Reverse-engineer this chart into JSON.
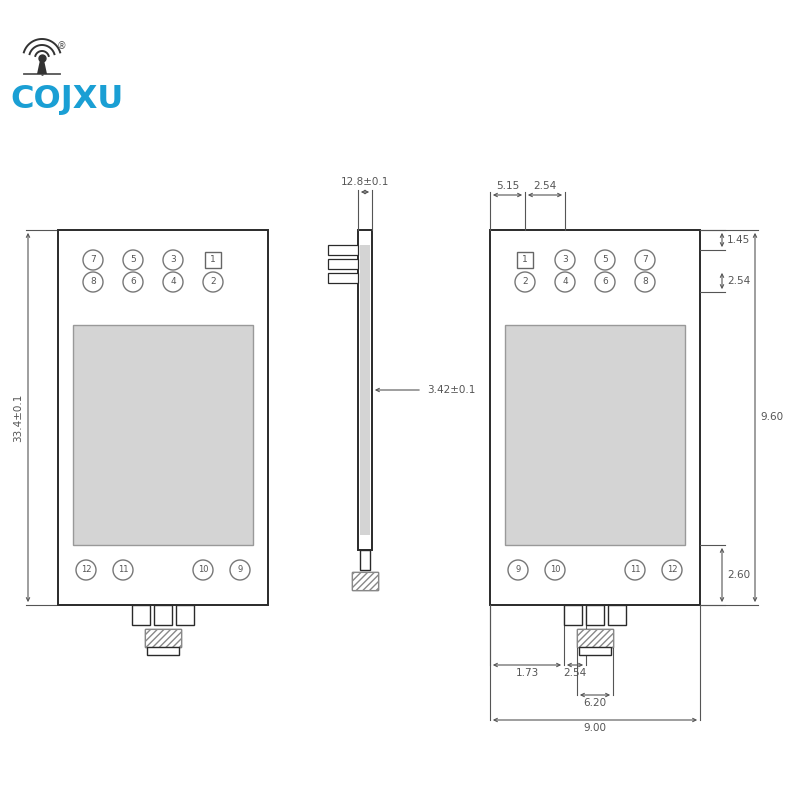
{
  "bg_color": "#ffffff",
  "line_color": "#2a2a2a",
  "dim_color": "#555555",
  "gray_fill": "#d4d4d4",
  "logo_color": "#1a9fd4",
  "logo_text": "COJXU",
  "dimensions": {
    "left_height": "33.4±0.1",
    "top_width": "12.8±0.1",
    "mid_label": "3.42±0.1",
    "right_top_w1": "5.15",
    "right_top_w2": "2.54",
    "right_d1": "1.45",
    "right_d2": "2.54",
    "right_bot": "2.60",
    "bot_w1": "1.73",
    "bot_w2": "2.54",
    "bot_w3": "6.20",
    "bot_w4": "9.00",
    "right_side": "9.60"
  }
}
